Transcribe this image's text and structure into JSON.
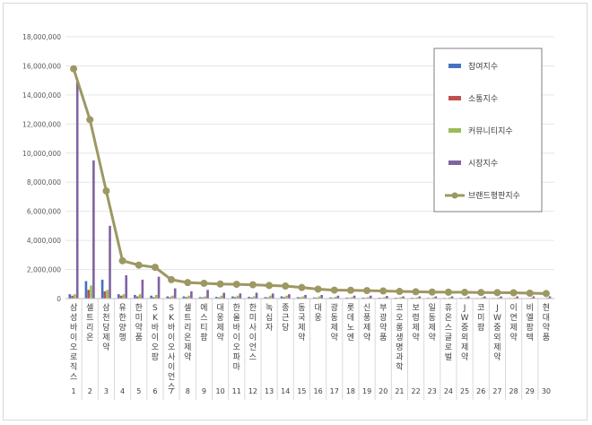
{
  "chart_data": {
    "type": "bar",
    "title": "",
    "xlabel": "",
    "ylabel": "",
    "ylim": [
      0,
      18000000
    ],
    "yticks": [
      "0",
      "2,000,000",
      "4,000,000",
      "6,000,000",
      "8,000,000",
      "10,000,000",
      "12,000,000",
      "14,000,000",
      "16,000,000",
      "18,000,000"
    ],
    "grid": true,
    "legend_position": "top-right",
    "categories": [
      "삼성바이오로직스",
      "셀트리온",
      "삼천당제약",
      "유한양행",
      "한미약품",
      "SK바이오팜",
      "SK바이오사이언스",
      "셀트리온제약",
      "에스티팜",
      "대웅제약",
      "한올바이오파마",
      "한미사이언스",
      "녹십자",
      "종근당",
      "동국제약",
      "대웅",
      "광동제약",
      "롯데노엔",
      "신풍제약",
      "부광약품",
      "코오롱생명과학",
      "보령제약",
      "일동제약",
      "휴온스글로벌",
      "JW중외제약",
      "코미팜",
      "JW중외제약",
      "이연제약",
      "비엘팜텍",
      "현대약품"
    ],
    "ranks": [
      "1",
      "2",
      "3",
      "4",
      "5",
      "6",
      "7",
      "8",
      "9",
      "10",
      "11",
      "12",
      "13",
      "14",
      "15",
      "16",
      "17",
      "18",
      "19",
      "20",
      "21",
      "22",
      "23",
      "24",
      "25",
      "26",
      "27",
      "28",
      "29",
      "30"
    ],
    "series": [
      {
        "name": "참여지수",
        "kind": "bar",
        "color": "#4472c4",
        "values": [
          300000,
          1200000,
          1300000,
          300000,
          250000,
          200000,
          150000,
          150000,
          100000,
          120000,
          150000,
          120000,
          100000,
          150000,
          100000,
          80000,
          80000,
          70000,
          70000,
          60000,
          60000,
          60000,
          50000,
          50000,
          50000,
          40000,
          40000,
          40000,
          30000,
          30000
        ]
      },
      {
        "name": "소통지수",
        "kind": "bar",
        "color": "#c0504d",
        "values": [
          200000,
          600000,
          500000,
          200000,
          150000,
          100000,
          100000,
          100000,
          80000,
          80000,
          100000,
          80000,
          80000,
          100000,
          80000,
          60000,
          50000,
          50000,
          50000,
          40000,
          40000,
          40000,
          30000,
          30000,
          30000,
          30000,
          30000,
          30000,
          20000,
          20000
        ]
      },
      {
        "name": "커뮤니티지수",
        "kind": "bar",
        "color": "#9bbb59",
        "values": [
          300000,
          900000,
          600000,
          300000,
          300000,
          250000,
          200000,
          200000,
          150000,
          200000,
          200000,
          150000,
          200000,
          200000,
          150000,
          150000,
          120000,
          100000,
          100000,
          100000,
          100000,
          80000,
          80000,
          80000,
          80000,
          80000,
          70000,
          70000,
          60000,
          60000
        ]
      },
      {
        "name": "시장지수",
        "kind": "bar",
        "color": "#8064a2",
        "values": [
          14900000,
          9500000,
          5000000,
          1600000,
          1300000,
          1500000,
          700000,
          500000,
          600000,
          400000,
          350000,
          400000,
          350000,
          300000,
          250000,
          250000,
          200000,
          200000,
          200000,
          180000,
          150000,
          150000,
          150000,
          150000,
          150000,
          150000,
          150000,
          150000,
          150000,
          150000
        ]
      },
      {
        "name": "브랜드평판지수",
        "kind": "line",
        "color": "#9d9863",
        "values": [
          15800000,
          12300000,
          7400000,
          2600000,
          2300000,
          2150000,
          1300000,
          1100000,
          1050000,
          1000000,
          980000,
          950000,
          900000,
          860000,
          760000,
          650000,
          580000,
          570000,
          550000,
          520000,
          490000,
          470000,
          450000,
          440000,
          430000,
          420000,
          410000,
          400000,
          370000,
          350000
        ]
      }
    ]
  }
}
